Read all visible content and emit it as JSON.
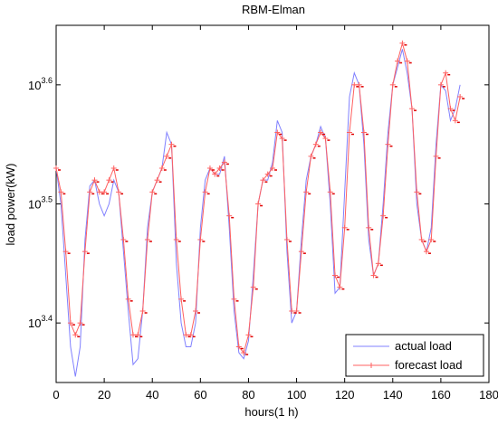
{
  "chart_data": {
    "type": "line",
    "title": "RBM-Elman",
    "xlabel": "hours(1 h)",
    "ylabel": "load power(kW)",
    "xlim": [
      0,
      180
    ],
    "y_scale": "log10",
    "ylim": [
      3.35,
      3.65
    ],
    "x_ticks": [
      "0",
      "20",
      "40",
      "60",
      "80",
      "100",
      "120",
      "140",
      "160",
      "180"
    ],
    "x_tick_values": [
      0,
      20,
      40,
      60,
      80,
      100,
      120,
      140,
      160,
      180
    ],
    "y_ticks": [
      {
        "base": "10",
        "exp": "3.4",
        "value": 3.4
      },
      {
        "base": "10",
        "exp": "3.5",
        "value": 3.5
      },
      {
        "base": "10",
        "exp": "3.6",
        "value": 3.6
      }
    ],
    "grid": false,
    "legend_position": "bottom-right",
    "series": [
      {
        "name": "actual load",
        "color": "#8080ff",
        "marker": "none",
        "x": [
          0,
          2,
          4,
          6,
          8,
          10,
          12,
          14,
          16,
          18,
          20,
          22,
          24,
          26,
          28,
          30,
          32,
          34,
          36,
          38,
          40,
          42,
          44,
          46,
          48,
          50,
          52,
          54,
          56,
          58,
          60,
          62,
          64,
          66,
          68,
          70,
          72,
          74,
          76,
          78,
          80,
          82,
          84,
          86,
          88,
          90,
          92,
          94,
          96,
          98,
          100,
          102,
          104,
          106,
          108,
          110,
          112,
          114,
          116,
          118,
          120,
          122,
          124,
          126,
          128,
          130,
          132,
          134,
          136,
          138,
          140,
          142,
          144,
          146,
          148,
          150,
          152,
          154,
          156,
          158,
          160,
          162,
          164,
          166,
          168
        ],
        "y": [
          3.53,
          3.5,
          3.44,
          3.38,
          3.355,
          3.38,
          3.47,
          3.515,
          3.52,
          3.5,
          3.49,
          3.5,
          3.52,
          3.51,
          3.46,
          3.41,
          3.365,
          3.37,
          3.41,
          3.48,
          3.51,
          3.52,
          3.53,
          3.56,
          3.55,
          3.45,
          3.4,
          3.38,
          3.38,
          3.4,
          3.48,
          3.52,
          3.53,
          3.525,
          3.525,
          3.54,
          3.48,
          3.41,
          3.375,
          3.37,
          3.385,
          3.44,
          3.5,
          3.52,
          3.52,
          3.535,
          3.57,
          3.56,
          3.46,
          3.4,
          3.41,
          3.47,
          3.52,
          3.54,
          3.55,
          3.565,
          3.555,
          3.5,
          3.425,
          3.43,
          3.51,
          3.59,
          3.61,
          3.6,
          3.55,
          3.47,
          3.44,
          3.45,
          3.5,
          3.56,
          3.6,
          3.615,
          3.63,
          3.61,
          3.58,
          3.5,
          3.47,
          3.46,
          3.48,
          3.55,
          3.6,
          3.595,
          3.57,
          3.58,
          3.6
        ]
      },
      {
        "name": "forecast load",
        "color": "#ff6060",
        "marker": "+",
        "x": [
          0,
          2,
          4,
          6,
          8,
          10,
          12,
          14,
          16,
          18,
          20,
          22,
          24,
          26,
          28,
          30,
          32,
          34,
          36,
          38,
          40,
          42,
          44,
          46,
          48,
          50,
          52,
          54,
          56,
          58,
          60,
          62,
          64,
          66,
          68,
          70,
          72,
          74,
          76,
          78,
          80,
          82,
          84,
          86,
          88,
          90,
          92,
          94,
          96,
          98,
          100,
          102,
          104,
          106,
          108,
          110,
          112,
          114,
          116,
          118,
          120,
          122,
          124,
          126,
          128,
          130,
          132,
          134,
          136,
          138,
          140,
          142,
          144,
          146,
          148,
          150,
          152,
          154,
          156,
          158,
          160,
          162,
          164,
          166,
          168
        ],
        "y": [
          3.53,
          3.51,
          3.46,
          3.4,
          3.39,
          3.4,
          3.46,
          3.51,
          3.52,
          3.51,
          3.51,
          3.52,
          3.53,
          3.51,
          3.47,
          3.42,
          3.39,
          3.39,
          3.41,
          3.47,
          3.51,
          3.52,
          3.53,
          3.54,
          3.55,
          3.47,
          3.42,
          3.39,
          3.39,
          3.41,
          3.47,
          3.51,
          3.53,
          3.525,
          3.53,
          3.535,
          3.49,
          3.42,
          3.38,
          3.375,
          3.39,
          3.43,
          3.5,
          3.52,
          3.525,
          3.53,
          3.56,
          3.555,
          3.47,
          3.41,
          3.41,
          3.46,
          3.51,
          3.54,
          3.55,
          3.56,
          3.555,
          3.51,
          3.44,
          3.43,
          3.48,
          3.56,
          3.6,
          3.6,
          3.56,
          3.48,
          3.44,
          3.45,
          3.49,
          3.55,
          3.6,
          3.62,
          3.635,
          3.62,
          3.58,
          3.51,
          3.47,
          3.46,
          3.47,
          3.54,
          3.6,
          3.61,
          3.58,
          3.57,
          3.59
        ]
      }
    ]
  }
}
